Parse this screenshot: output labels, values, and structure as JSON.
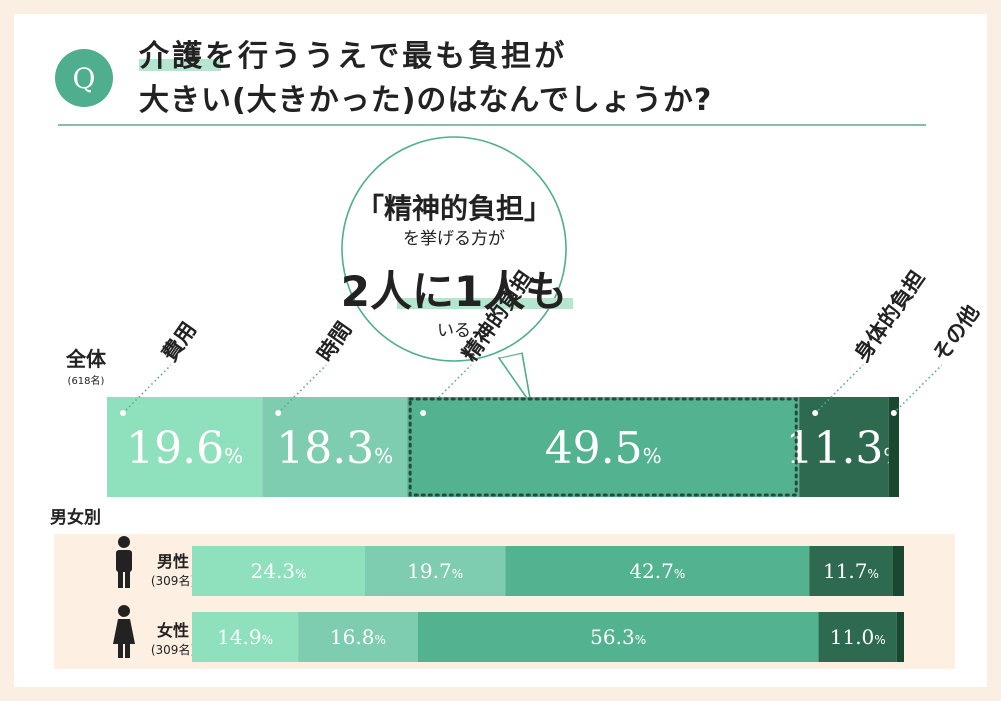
{
  "question": {
    "badge": "Q",
    "line1": "介護を行ううえで最も負担が",
    "line2": "大きい(大きかった)のはなんでしょうか?"
  },
  "callout": {
    "line1": "「精神的負担」",
    "line2": "を挙げる方が",
    "big": "2人に1人も",
    "line4": "いる"
  },
  "colors": {
    "accent": "#4fae8e",
    "highlight": "#b7e6d0",
    "cat1": "#8fe0bd",
    "cat2": "#7fcdb1",
    "cat3": "#53b391",
    "cat4": "#2d6a4f",
    "cat5": "#1a4730",
    "gender_bg": "#fdf0e2",
    "rule": "#5aa88c"
  },
  "chart_data": {
    "type": "bar",
    "orientation": "horizontal-stacked-100",
    "categories": [
      "費用",
      "時間",
      "精神的負担",
      "身体的負担",
      "その他"
    ],
    "unit": "%",
    "rows": [
      {
        "label": "全体",
        "sublabel": "(618名)",
        "values": [
          19.6,
          18.3,
          49.5,
          11.3,
          1.3
        ],
        "labels": [
          "19.6",
          "18.3",
          "49.5",
          "11.3",
          ""
        ]
      },
      {
        "label": "男性",
        "sublabel": "(309名)",
        "icon": "male-icon",
        "values": [
          24.3,
          19.7,
          42.7,
          11.7,
          1.6
        ],
        "labels": [
          "24.3",
          "19.7",
          "42.7",
          "11.7",
          ""
        ]
      },
      {
        "label": "女性",
        "sublabel": "(309名)",
        "icon": "female-icon",
        "values": [
          14.9,
          16.8,
          56.3,
          11.0,
          1.0
        ],
        "labels": [
          "14.9",
          "16.8",
          "56.3",
          "11.0",
          ""
        ]
      }
    ],
    "section_label": "男女別",
    "highlight_category": "精神的負担"
  }
}
